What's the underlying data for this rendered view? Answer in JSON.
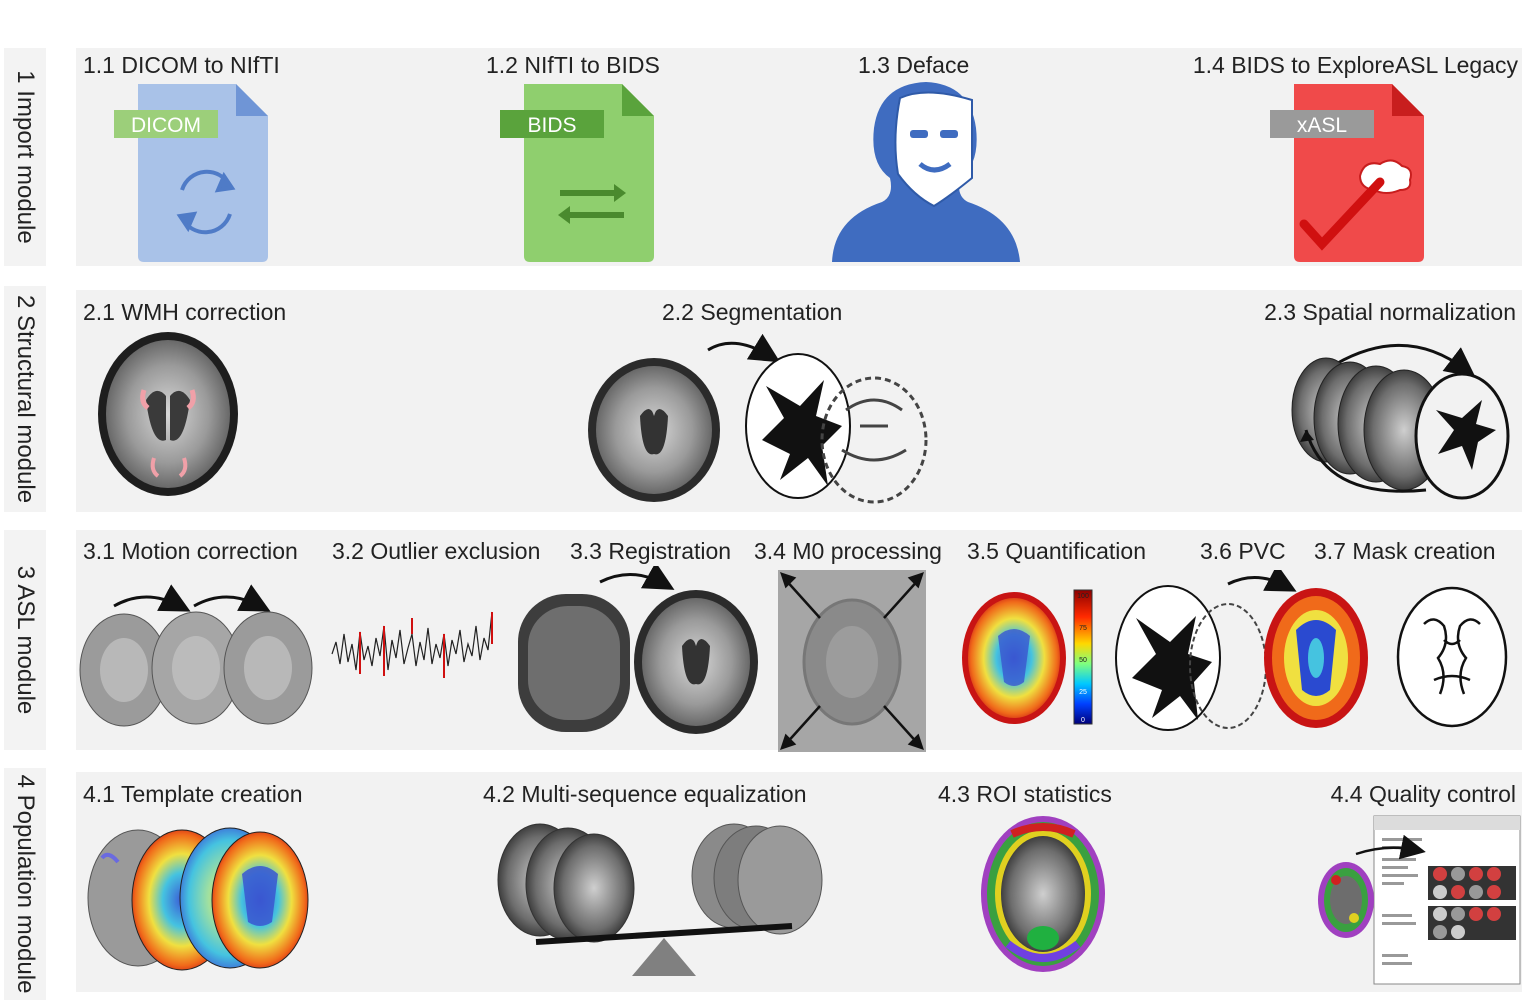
{
  "modules": [
    {
      "label": "1 Import module",
      "steps": [
        "1.1 DICOM to NIfTI",
        "1.2 NIfTI to BIDS",
        "1.3 Deface",
        "1.4 BIDS to ExploreASL Legacy"
      ]
    },
    {
      "label": "2 Structural module",
      "steps": [
        "2.1 WMH correction",
        "2.2 Segmentation",
        "2.3 Spatial normalization"
      ]
    },
    {
      "label": "3 ASL module",
      "steps": [
        "3.1 Motion correction",
        "3.2 Outlier exclusion",
        "3.3 Registration",
        "3.4 M0 processing",
        "3.5 Quantification",
        "3.6 PVC",
        "3.7 Mask creation"
      ]
    },
    {
      "label": "4 Population module",
      "steps": [
        "4.1 Template creation",
        "4.2 Multi-sequence equalization",
        "4.3 ROI statistics",
        "4.4 Quality control"
      ]
    }
  ],
  "file_tags": {
    "dicom": "DICOM",
    "bids": "BIDS",
    "xasl": "xASL"
  },
  "colorbar_ticks": [
    "100",
    "75",
    "50",
    "25",
    "0"
  ],
  "colors": {
    "panel": "#f2f2f2",
    "dicom_file": "#a9c2e8",
    "dicom_tag": "#9ccf7a",
    "bids_file": "#8fcf6e",
    "bids_tag": "#5aa33c",
    "xasl_file": "#f04a4a",
    "xasl_tag": "#9a9a9a",
    "deface_blue": "#3f6cc0"
  },
  "icons": [
    "sync-arrows-icon",
    "swap-arrows-icon",
    "brain-check-icon",
    "deface-mask-icon"
  ]
}
